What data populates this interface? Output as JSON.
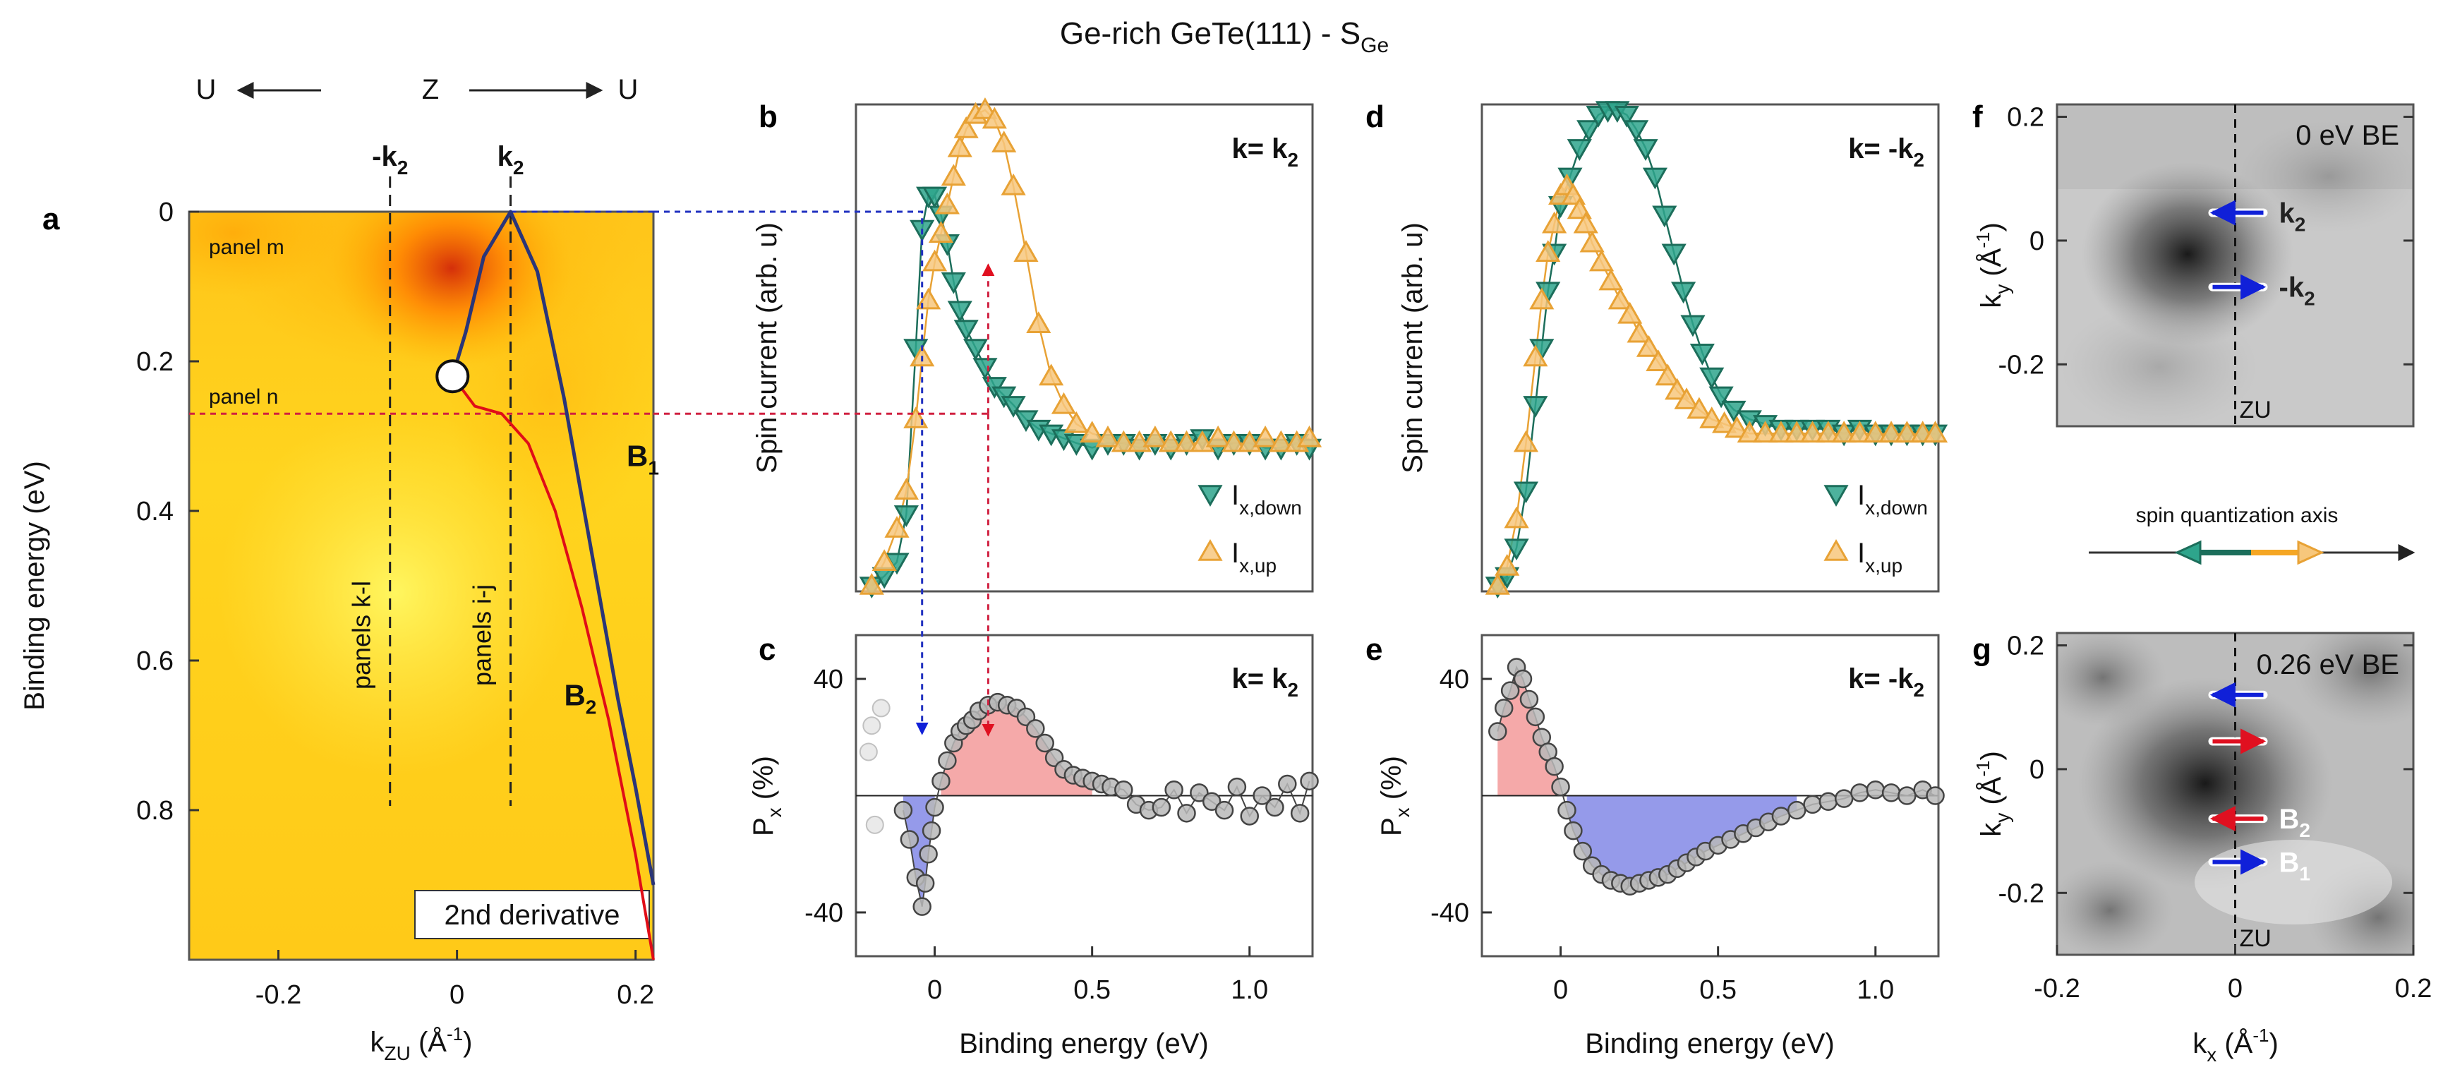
{
  "colors": {
    "arpes_hot": "#d2280a",
    "arpes_warm": "#ff9600",
    "arpes_bg": "#ffd21e",
    "arpes_light": "#ffe84a",
    "band_b1": "#2a3578",
    "band_b2": "#e00d17",
    "down_fill": "#2ea58c",
    "down_stroke": "#1c6e5b",
    "up_fill": "#f7c77c",
    "up_stroke": "#e8a235",
    "pos_fill": "#f4a0a0",
    "pos_line": "#e05b5b",
    "neg_fill": "#8a8fe8",
    "neg_line": "#3b3fc4",
    "marker_fill": "#b8b8b8",
    "blue_arrow": "#1020d8",
    "red_arrow": "#e01020",
    "guide_blue": "#2030c0",
    "guide_red": "#d02040"
  },
  "figure": {
    "title_main": "Ge-rich GeTe(111) - S",
    "title_sub": "Ge",
    "direction_left": "U",
    "direction_center": "Z",
    "direction_right": "U"
  },
  "chart_data": [
    {
      "id": "a",
      "type": "heatmap",
      "panel_label": "a",
      "xlabel_main": "k",
      "xlabel_sub": "ZU",
      "xlabel_unit": " (Å",
      "xlabel_exp": "-1",
      "xlabel_close": ")",
      "ylabel": "Binding energy (eV)",
      "xlim": [
        -0.3,
        0.22
      ],
      "ylim": [
        0,
        1.0
      ],
      "xticks": [
        -0.2,
        0,
        0.2
      ],
      "xtick_labels": [
        "-0.2",
        "0",
        "0.2"
      ],
      "yticks": [
        0,
        0.2,
        0.4,
        0.6,
        0.8
      ],
      "ytick_labels": [
        "0",
        "0.2",
        "0.4",
        "0.6",
        "0.8"
      ],
      "k2_label": "k",
      "k2_sub": "2",
      "mk2_label": "-k",
      "mk2_sub": "2",
      "k2_value": 0.06,
      "mk2_value": -0.075,
      "panel_m_text": "panel m",
      "panel_m_energy": 0,
      "panel_n_text": "panel n",
      "panel_n_energy": 0.27,
      "panels_kl_text": "panels k-l",
      "panels_ij_text": "panels i-j",
      "inset_text": "2nd derivative",
      "band_b1_label": "B",
      "band_b1_sub": "1",
      "band_b2_label": "B",
      "band_b2_sub": "2",
      "crossing": {
        "k": -0.005,
        "E": 0.22
      },
      "band_B1": {
        "k": [
          -0.005,
          0.01,
          0.03,
          0.06,
          0.09,
          0.12,
          0.15,
          0.18,
          0.2,
          0.22
        ],
        "E": [
          0.22,
          0.16,
          0.06,
          0.0,
          0.08,
          0.25,
          0.45,
          0.65,
          0.77,
          0.9
        ]
      },
      "band_B2": {
        "k": [
          -0.005,
          0.02,
          0.05,
          0.08,
          0.11,
          0.14,
          0.17,
          0.2,
          0.22
        ],
        "E": [
          0.22,
          0.26,
          0.27,
          0.31,
          0.4,
          0.53,
          0.68,
          0.86,
          1.0
        ]
      }
    },
    {
      "id": "b",
      "type": "line",
      "panel_label": "b",
      "annotation_k": "k= k",
      "annotation_sub": "2",
      "ylabel": "Spin current (arb. u)",
      "xlim": [
        -0.25,
        1.2
      ],
      "ylim": [
        0,
        1
      ],
      "legend_down_main": "I",
      "legend_down_sub": "x,down",
      "legend_up_main": "I",
      "legend_up_sub": "x,up",
      "series": [
        {
          "name": "I x,down",
          "x": [
            -0.2,
            -0.16,
            -0.12,
            -0.09,
            -0.06,
            -0.04,
            -0.02,
            0.0,
            0.02,
            0.04,
            0.06,
            0.08,
            0.1,
            0.13,
            0.16,
            0.19,
            0.22,
            0.25,
            0.29,
            0.33,
            0.37,
            0.41,
            0.45,
            0.5,
            0.55,
            0.6,
            0.65,
            0.7,
            0.75,
            0.8,
            0.85,
            0.9,
            0.95,
            1.0,
            1.05,
            1.1,
            1.15,
            1.19
          ],
          "y": [
            0.0,
            0.02,
            0.05,
            0.15,
            0.5,
            0.75,
            0.82,
            0.82,
            0.78,
            0.72,
            0.64,
            0.58,
            0.54,
            0.5,
            0.46,
            0.42,
            0.4,
            0.38,
            0.35,
            0.33,
            0.32,
            0.31,
            0.3,
            0.29,
            0.3,
            0.3,
            0.29,
            0.3,
            0.29,
            0.3,
            0.31,
            0.29,
            0.3,
            0.3,
            0.29,
            0.29,
            0.3,
            0.29
          ]
        },
        {
          "name": "I x,up",
          "x": [
            -0.2,
            -0.16,
            -0.12,
            -0.09,
            -0.06,
            -0.04,
            -0.02,
            0.0,
            0.02,
            0.04,
            0.06,
            0.08,
            0.1,
            0.13,
            0.16,
            0.19,
            0.22,
            0.25,
            0.29,
            0.33,
            0.37,
            0.41,
            0.45,
            0.5,
            0.55,
            0.6,
            0.65,
            0.7,
            0.75,
            0.8,
            0.85,
            0.9,
            0.95,
            1.0,
            1.05,
            1.1,
            1.15,
            1.19
          ],
          "y": [
            0.0,
            0.05,
            0.12,
            0.2,
            0.35,
            0.48,
            0.6,
            0.68,
            0.74,
            0.8,
            0.86,
            0.92,
            0.96,
            0.99,
            1.0,
            0.98,
            0.93,
            0.84,
            0.7,
            0.55,
            0.44,
            0.38,
            0.34,
            0.32,
            0.31,
            0.3,
            0.3,
            0.31,
            0.3,
            0.3,
            0.3,
            0.31,
            0.3,
            0.3,
            0.31,
            0.3,
            0.3,
            0.31
          ]
        }
      ]
    },
    {
      "id": "c",
      "type": "area",
      "panel_label": "c",
      "annotation_k": "k= k",
      "annotation_sub": "2",
      "ylabel_main": "P",
      "ylabel_sub": "x",
      "ylabel_unit": " (%)",
      "xlabel": "Binding energy (eV)",
      "xlim": [
        -0.25,
        1.2
      ],
      "ylim": [
        -55,
        55
      ],
      "xticks": [
        0,
        0.5,
        1.0
      ],
      "xtick_labels": [
        "0",
        "0.5",
        "1.0"
      ],
      "yticks": [
        40,
        -40
      ],
      "ytick_labels": [
        "40",
        "-40"
      ],
      "faded_points": {
        "x": [
          -0.2,
          -0.17,
          -0.21,
          -0.19
        ],
        "y": [
          24,
          30,
          15,
          -10
        ]
      },
      "x": [
        -0.1,
        -0.08,
        -0.06,
        -0.04,
        -0.03,
        -0.02,
        -0.01,
        0.0,
        0.02,
        0.04,
        0.06,
        0.08,
        0.1,
        0.12,
        0.14,
        0.17,
        0.2,
        0.23,
        0.26,
        0.29,
        0.32,
        0.35,
        0.38,
        0.41,
        0.44,
        0.47,
        0.5,
        0.53,
        0.56,
        0.6,
        0.64,
        0.68,
        0.72,
        0.76,
        0.8,
        0.84,
        0.88,
        0.92,
        0.96,
        1.0,
        1.04,
        1.08,
        1.12,
        1.16,
        1.19
      ],
      "y": [
        -5,
        -15,
        -28,
        -38,
        -30,
        -20,
        -12,
        -4,
        5,
        12,
        18,
        22,
        24,
        26,
        29,
        31,
        32,
        31,
        30,
        27,
        23,
        18,
        13,
        9,
        7,
        6,
        5,
        4,
        3,
        2,
        -3,
        -5,
        -4,
        2,
        -6,
        1,
        -2,
        -5,
        3,
        -7,
        0,
        -4,
        4,
        -6,
        5
      ]
    },
    {
      "id": "d",
      "type": "line",
      "panel_label": "d",
      "annotation_k": "k= -k",
      "annotation_sub": "2",
      "ylabel": "Spin current (arb. u)",
      "xlim": [
        -0.25,
        1.2
      ],
      "ylim": [
        0,
        1
      ],
      "legend_down_main": "I",
      "legend_down_sub": "x,down",
      "legend_up_main": "I",
      "legend_up_sub": "x,up",
      "series": [
        {
          "name": "I x,down",
          "x": [
            -0.2,
            -0.17,
            -0.14,
            -0.11,
            -0.08,
            -0.06,
            -0.04,
            -0.02,
            0.0,
            0.03,
            0.06,
            0.09,
            0.12,
            0.15,
            0.18,
            0.21,
            0.24,
            0.27,
            0.3,
            0.33,
            0.36,
            0.39,
            0.42,
            0.45,
            0.48,
            0.51,
            0.55,
            0.6,
            0.65,
            0.7,
            0.75,
            0.8,
            0.85,
            0.9,
            0.95,
            1.0,
            1.05,
            1.1,
            1.15,
            1.19
          ],
          "y": [
            0.0,
            0.02,
            0.08,
            0.2,
            0.38,
            0.5,
            0.62,
            0.7,
            0.8,
            0.86,
            0.92,
            0.96,
            0.99,
            1.0,
            1.0,
            0.99,
            0.96,
            0.92,
            0.86,
            0.78,
            0.7,
            0.62,
            0.55,
            0.49,
            0.44,
            0.4,
            0.37,
            0.35,
            0.34,
            0.33,
            0.33,
            0.33,
            0.33,
            0.32,
            0.33,
            0.32,
            0.32,
            0.32,
            0.32,
            0.32
          ]
        },
        {
          "name": "I x,up",
          "x": [
            -0.2,
            -0.17,
            -0.14,
            -0.11,
            -0.08,
            -0.06,
            -0.04,
            -0.02,
            0.0,
            0.02,
            0.04,
            0.06,
            0.08,
            0.1,
            0.13,
            0.16,
            0.19,
            0.22,
            0.25,
            0.28,
            0.31,
            0.34,
            0.37,
            0.4,
            0.44,
            0.48,
            0.52,
            0.56,
            0.6,
            0.65,
            0.7,
            0.75,
            0.8,
            0.85,
            0.9,
            0.95,
            1.0,
            1.05,
            1.1,
            1.15,
            1.19
          ],
          "y": [
            0.0,
            0.04,
            0.14,
            0.3,
            0.48,
            0.6,
            0.7,
            0.76,
            0.82,
            0.84,
            0.82,
            0.79,
            0.76,
            0.72,
            0.68,
            0.64,
            0.6,
            0.57,
            0.53,
            0.5,
            0.47,
            0.44,
            0.41,
            0.39,
            0.37,
            0.35,
            0.34,
            0.33,
            0.32,
            0.32,
            0.32,
            0.32,
            0.32,
            0.32,
            0.32,
            0.32,
            0.32,
            0.32,
            0.32,
            0.32,
            0.32
          ]
        }
      ]
    },
    {
      "id": "e",
      "type": "area",
      "panel_label": "e",
      "annotation_k": "k= -k",
      "annotation_sub": "2",
      "ylabel_main": "P",
      "ylabel_sub": "x",
      "ylabel_unit": " (%)",
      "xlabel": "Binding energy (eV)",
      "xlim": [
        -0.25,
        1.2
      ],
      "ylim": [
        -55,
        55
      ],
      "xticks": [
        0,
        0.5,
        1.0
      ],
      "xtick_labels": [
        "0",
        "0.5",
        "1.0"
      ],
      "yticks": [
        40,
        -40
      ],
      "ytick_labels": [
        "40",
        "-40"
      ],
      "x": [
        -0.2,
        -0.18,
        -0.16,
        -0.14,
        -0.12,
        -0.1,
        -0.08,
        -0.06,
        -0.04,
        -0.02,
        0.0,
        0.02,
        0.04,
        0.07,
        0.1,
        0.13,
        0.16,
        0.19,
        0.22,
        0.25,
        0.28,
        0.31,
        0.34,
        0.37,
        0.4,
        0.43,
        0.46,
        0.5,
        0.54,
        0.58,
        0.62,
        0.66,
        0.7,
        0.75,
        0.8,
        0.85,
        0.9,
        0.95,
        1.0,
        1.05,
        1.1,
        1.15,
        1.19
      ],
      "y": [
        22,
        30,
        36,
        44,
        40,
        33,
        27,
        20,
        15,
        10,
        3,
        -5,
        -12,
        -19,
        -24,
        -27,
        -29,
        -30,
        -31,
        -30,
        -29,
        -28,
        -27,
        -25,
        -23,
        -21,
        -19,
        -17,
        -15,
        -13,
        -11,
        -9,
        -7,
        -5,
        -3,
        -2,
        -1,
        1,
        2,
        1,
        0,
        2,
        0
      ]
    },
    {
      "id": "f",
      "type": "heatmap",
      "panel_label": "f",
      "annotation_text": "0 eV BE",
      "ylabel_main": "k",
      "ylabel_sub": "y",
      "ylabel_unit": " (Å",
      "ylabel_exp": "-1",
      "ylabel_close": ")",
      "xlim": [
        -0.2,
        0.2
      ],
      "ylim": [
        -0.3,
        0.22
      ],
      "yticks": [
        0.2,
        0,
        -0.2
      ],
      "ytick_labels": [
        "0.2",
        "0",
        "-0.2"
      ],
      "zu_label": "ZU",
      "arrows": [
        {
          "label": "k",
          "sub": "2",
          "ky": 0.045,
          "dir": "left",
          "color": "blue"
        },
        {
          "label": "-k",
          "sub": "2",
          "ky": -0.075,
          "dir": "right",
          "color": "blue"
        }
      ]
    },
    {
      "id": "g",
      "type": "heatmap",
      "panel_label": "g",
      "annotation_text": "0.26 eV BE",
      "ylabel_main": "k",
      "ylabel_sub": "y",
      "ylabel_unit": " (Å",
      "ylabel_exp": "-1",
      "ylabel_close": ")",
      "xlabel_main": "k",
      "xlabel_sub": "x",
      "xlabel_unit": " (Å",
      "xlabel_exp": "-1",
      "xlabel_close": ")",
      "xlim": [
        -0.2,
        0.2
      ],
      "ylim": [
        -0.3,
        0.22
      ],
      "xticks": [
        -0.2,
        0,
        0.2
      ],
      "xtick_labels": [
        "-0.2",
        "0",
        "0.2"
      ],
      "yticks": [
        0.2,
        0,
        -0.2
      ],
      "ytick_labels": [
        "0.2",
        "0",
        "-0.2"
      ],
      "zu_label": "ZU",
      "arrows": [
        {
          "ky": 0.12,
          "dir": "left",
          "color": "blue"
        },
        {
          "ky": 0.045,
          "dir": "right",
          "color": "red"
        },
        {
          "label": "B",
          "sub": "2",
          "ky": -0.08,
          "dir": "left",
          "color": "red"
        },
        {
          "label": "B",
          "sub": "1",
          "ky": -0.15,
          "dir": "right",
          "color": "blue"
        }
      ]
    }
  ],
  "spin_axis": {
    "label": "spin quantization axis"
  }
}
